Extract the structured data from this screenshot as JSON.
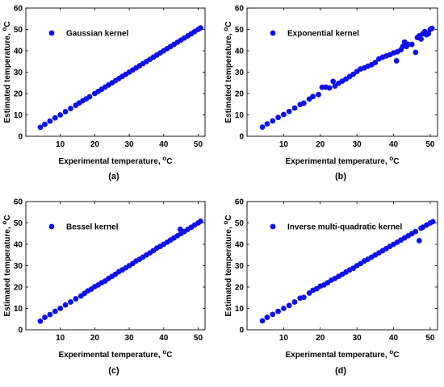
{
  "figure": {
    "marker_color": "#1010e8"
  },
  "chart_data": [
    {
      "type": "scatter",
      "panel": "(a)",
      "legend": "Gaussian kernel",
      "legend_position": "top-left",
      "xlabel": "Experimental temperature, ",
      "ylabel": "Estimated temperature, ",
      "unit_superscript": "o",
      "unit": "C",
      "xlim": [
        0,
        52
      ],
      "ylim": [
        0,
        60
      ],
      "xticks": [
        10,
        20,
        30,
        40,
        50
      ],
      "yticks": [
        0,
        10,
        20,
        30,
        40,
        50,
        60
      ],
      "grid": false,
      "points": [
        [
          4.2,
          4.2
        ],
        [
          5.5,
          5.6
        ],
        [
          7,
          7.1
        ],
        [
          8.5,
          8.6
        ],
        [
          10,
          10
        ],
        [
          11.5,
          11.5
        ],
        [
          13,
          13
        ],
        [
          14.5,
          14.5
        ],
        [
          15.5,
          15.6
        ],
        [
          16.5,
          16.6
        ],
        [
          17.5,
          17.5
        ],
        [
          18.5,
          18.5
        ],
        [
          20,
          20
        ],
        [
          21,
          21
        ],
        [
          22,
          22
        ],
        [
          23,
          23
        ],
        [
          24,
          24
        ],
        [
          25,
          25
        ],
        [
          26,
          26
        ],
        [
          27,
          27
        ],
        [
          28,
          28
        ],
        [
          29,
          29
        ],
        [
          30,
          30
        ],
        [
          31,
          31
        ],
        [
          32,
          32
        ],
        [
          33,
          33
        ],
        [
          34,
          34
        ],
        [
          35,
          35
        ],
        [
          36,
          36
        ],
        [
          37,
          37
        ],
        [
          38,
          38
        ],
        [
          39,
          39
        ],
        [
          40,
          40
        ],
        [
          41,
          41
        ],
        [
          42,
          42
        ],
        [
          43,
          43
        ],
        [
          44,
          44
        ],
        [
          45,
          45
        ],
        [
          46,
          46
        ],
        [
          47,
          47
        ],
        [
          48,
          48
        ],
        [
          49,
          49
        ],
        [
          50,
          50
        ],
        [
          50.7,
          50.7
        ]
      ]
    },
    {
      "type": "scatter",
      "panel": "(b)",
      "legend": "Exponential kernel",
      "legend_position": "top-left",
      "xlabel": "Experimental temperature, ",
      "ylabel": "Estimated temperature, ",
      "unit_superscript": "o",
      "unit": "C",
      "xlim": [
        0,
        52
      ],
      "ylim": [
        0,
        60
      ],
      "xticks": [
        10,
        20,
        30,
        40,
        50
      ],
      "yticks": [
        0,
        10,
        20,
        30,
        40,
        50,
        60
      ],
      "grid": false,
      "points": [
        [
          4.2,
          4.3
        ],
        [
          5.5,
          5.8
        ],
        [
          7,
          7.2
        ],
        [
          8.5,
          8.8
        ],
        [
          10,
          10.2
        ],
        [
          11.5,
          11.6
        ],
        [
          13,
          13.2
        ],
        [
          14.5,
          14.8
        ],
        [
          15.5,
          15.5
        ],
        [
          17,
          17.4
        ],
        [
          18,
          18.6
        ],
        [
          19.5,
          19.5
        ],
        [
          20.5,
          22.9
        ],
        [
          21.5,
          23
        ],
        [
          22.5,
          22.6
        ],
        [
          23.5,
          25.7
        ],
        [
          24,
          23.5
        ],
        [
          25,
          24.8
        ],
        [
          26,
          25.8
        ],
        [
          27,
          26.8
        ],
        [
          28,
          27.9
        ],
        [
          29,
          29
        ],
        [
          30,
          30.3
        ],
        [
          31,
          31.5
        ],
        [
          32,
          32
        ],
        [
          33,
          32.8
        ],
        [
          34,
          33.5
        ],
        [
          35,
          34.5
        ],
        [
          36,
          36.2
        ],
        [
          37,
          37
        ],
        [
          38,
          37.6
        ],
        [
          39,
          38.2
        ],
        [
          40,
          39
        ],
        [
          40.8,
          35.3
        ],
        [
          41,
          39.5
        ],
        [
          42,
          40.5
        ],
        [
          42.5,
          42
        ],
        [
          43,
          44.1
        ],
        [
          43.5,
          42
        ],
        [
          44,
          43
        ],
        [
          45,
          43
        ],
        [
          46,
          39.3
        ],
        [
          46.5,
          46.2
        ],
        [
          47,
          47
        ],
        [
          47.5,
          45.5
        ],
        [
          48,
          48
        ],
        [
          48.5,
          49
        ],
        [
          49,
          47.5
        ],
        [
          49.5,
          48
        ],
        [
          50,
          50
        ],
        [
          50.5,
          50.5
        ]
      ]
    },
    {
      "type": "scatter",
      "panel": "(c)",
      "legend": "Bessel kernel",
      "legend_position": "top-left",
      "xlabel": "Experimental temperature, ",
      "ylabel": "Estimated temperature, ",
      "unit_superscript": "o",
      "unit": "C",
      "xlim": [
        0,
        52
      ],
      "ylim": [
        0,
        60
      ],
      "xticks": [
        10,
        20,
        30,
        40,
        50
      ],
      "yticks": [
        0,
        10,
        20,
        30,
        40,
        50,
        60
      ],
      "grid": false,
      "points": [
        [
          4.2,
          4
        ],
        [
          5.5,
          5.8
        ],
        [
          7,
          7.1
        ],
        [
          8.5,
          8.6
        ],
        [
          10,
          10
        ],
        [
          11.5,
          11.6
        ],
        [
          13,
          13
        ],
        [
          14.5,
          14.5
        ],
        [
          16,
          15.8
        ],
        [
          17,
          17
        ],
        [
          18,
          18.2
        ],
        [
          19,
          19
        ],
        [
          20,
          20.2
        ],
        [
          21,
          21
        ],
        [
          22,
          22
        ],
        [
          23,
          22.8
        ],
        [
          24,
          24
        ],
        [
          25,
          25
        ],
        [
          26,
          26
        ],
        [
          27,
          27.2
        ],
        [
          28,
          28
        ],
        [
          29,
          29
        ],
        [
          30,
          30
        ],
        [
          31,
          31
        ],
        [
          32,
          32.2
        ],
        [
          33,
          33
        ],
        [
          34,
          34
        ],
        [
          35,
          35
        ],
        [
          36,
          36
        ],
        [
          37,
          37
        ],
        [
          38,
          38.2
        ],
        [
          39,
          39
        ],
        [
          40,
          40
        ],
        [
          41,
          41
        ],
        [
          42,
          42
        ],
        [
          43,
          43
        ],
        [
          44,
          44
        ],
        [
          44.8,
          47
        ],
        [
          45,
          45
        ],
        [
          46,
          46
        ],
        [
          47,
          47
        ],
        [
          48,
          48
        ],
        [
          49,
          49
        ],
        [
          50,
          50
        ],
        [
          50.7,
          50.8
        ]
      ]
    },
    {
      "type": "scatter",
      "panel": "(d)",
      "legend": "Inverse multi-quadratic kernel",
      "legend_position": "top-left",
      "xlabel": "Experimental temperature, ",
      "ylabel": "Estimated temperature, ",
      "unit_superscript": "o",
      "unit": "C",
      "xlim": [
        0,
        52
      ],
      "ylim": [
        0,
        60
      ],
      "xticks": [
        10,
        20,
        30,
        40,
        50
      ],
      "yticks": [
        0,
        10,
        20,
        30,
        40,
        50,
        60
      ],
      "grid": false,
      "points": [
        [
          4.2,
          4.2
        ],
        [
          5.5,
          5.8
        ],
        [
          7,
          7.2
        ],
        [
          8.5,
          8.6
        ],
        [
          10,
          10
        ],
        [
          11.5,
          11.4
        ],
        [
          13,
          13
        ],
        [
          14.5,
          14.8
        ],
        [
          15.5,
          15.2
        ],
        [
          17,
          17.2
        ],
        [
          18,
          18.5
        ],
        [
          19,
          19.2
        ],
        [
          20,
          20.4
        ],
        [
          21,
          21
        ],
        [
          22,
          22
        ],
        [
          23,
          23.2
        ],
        [
          24,
          24
        ],
        [
          25,
          25
        ],
        [
          26,
          26
        ],
        [
          27,
          27
        ],
        [
          28,
          28
        ],
        [
          29,
          28.8
        ],
        [
          30,
          30
        ],
        [
          31,
          31
        ],
        [
          32,
          32.2
        ],
        [
          33,
          33
        ],
        [
          34,
          34
        ],
        [
          35,
          35
        ],
        [
          36,
          36
        ],
        [
          37,
          37
        ],
        [
          38,
          38
        ],
        [
          39,
          39
        ],
        [
          40,
          40
        ],
        [
          41,
          41
        ],
        [
          42,
          42
        ],
        [
          43,
          43
        ],
        [
          44,
          44
        ],
        [
          45,
          45
        ],
        [
          46,
          46
        ],
        [
          47,
          41.7
        ],
        [
          47.5,
          47.5
        ],
        [
          48,
          48
        ],
        [
          49,
          49
        ],
        [
          50,
          50
        ],
        [
          50.7,
          50.6
        ]
      ]
    }
  ]
}
